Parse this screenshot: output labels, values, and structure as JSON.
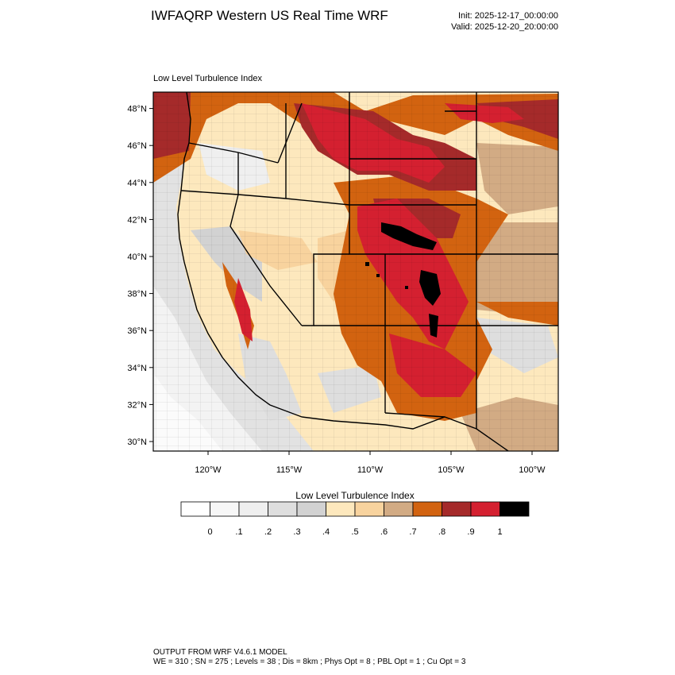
{
  "header": {
    "title": "IWFAQRP Western US Real Time WRF",
    "init": "Init: 2025-12-17_00:00:00",
    "valid": "Valid: 2025-12-20_20:00:00"
  },
  "plot": {
    "subtitle": "Low Level Turbulence Index",
    "lat_ticks": [
      "30°N",
      "32°N",
      "34°N",
      "36°N",
      "38°N",
      "40°N",
      "42°N",
      "44°N",
      "46°N",
      "48°N"
    ],
    "lon_ticks": [
      "120°W",
      "115°W",
      "110°W",
      "105°W",
      "100°W"
    ],
    "lat_values": [
      30,
      32,
      34,
      36,
      38,
      40,
      42,
      44,
      46,
      48
    ],
    "lon_values": [
      -120,
      -115,
      -110,
      -105,
      -100
    ]
  },
  "colorbar": {
    "title": "Low Level Turbulence Index",
    "labels": [
      "0",
      ".1",
      ".2",
      ".3",
      ".4",
      ".5",
      ".6",
      ".7",
      ".8",
      ".9",
      "1"
    ],
    "colors": [
      "#ffffff",
      "#f7f7f7",
      "#efefef",
      "#dedede",
      "#d2d2d2",
      "#fde8bd",
      "#f8d39e",
      "#d2ab84",
      "#d26310",
      "#a52a2a",
      "#d42030",
      "#000000"
    ]
  },
  "footer": {
    "line1": "OUTPUT FROM WRF V4.6.1 MODEL",
    "line2": "WE = 310 ; SN = 275 ; Levels = 38 ; Dis = 8km ; Phys Opt = 8 ; PBL Opt = 1 ; Cu Opt = 3"
  }
}
